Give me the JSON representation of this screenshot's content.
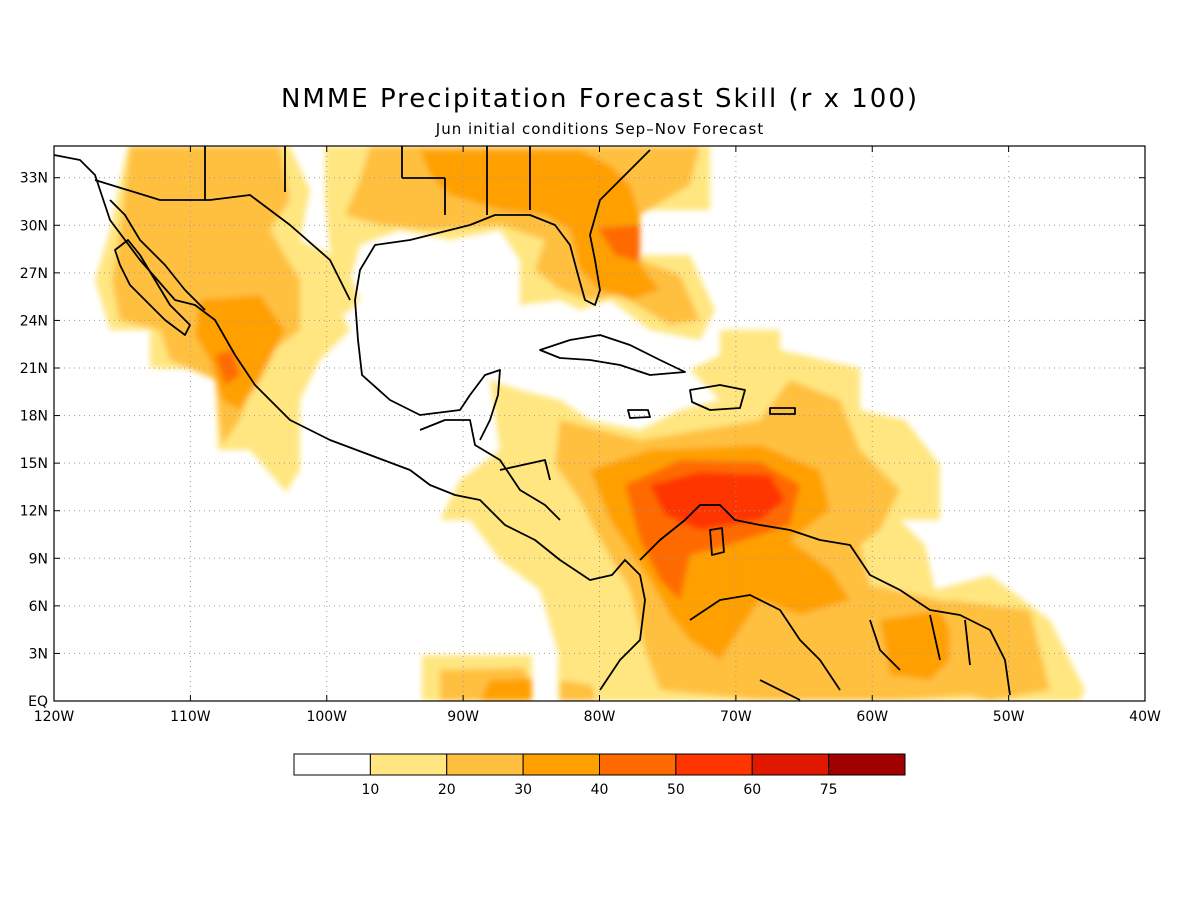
{
  "title": "NMME Precipitation Forecast Skill (r x 100)",
  "subtitle": "Jun initial conditions  Sep–Nov Forecast",
  "map": {
    "lon_range": [
      -120,
      -40
    ],
    "lat_range": [
      0,
      35
    ],
    "gridlines": true,
    "lon_ticks": [
      "120W",
      "110W",
      "100W",
      "90W",
      "80W",
      "70W",
      "60W",
      "50W",
      "40W"
    ],
    "lat_ticks": [
      "EQ",
      "3N",
      "6N",
      "9N",
      "12N",
      "15N",
      "18N",
      "21N",
      "24N",
      "27N",
      "30N",
      "33N"
    ]
  },
  "colorbar": {
    "labels": [
      "10",
      "20",
      "30",
      "40",
      "50",
      "60",
      "75"
    ],
    "colors": [
      "#ffffff",
      "#ffe680",
      "#ffc040",
      "#ffa000",
      "#ff6a00",
      "#ff3600",
      "#e01800",
      "#a00000"
    ]
  }
}
